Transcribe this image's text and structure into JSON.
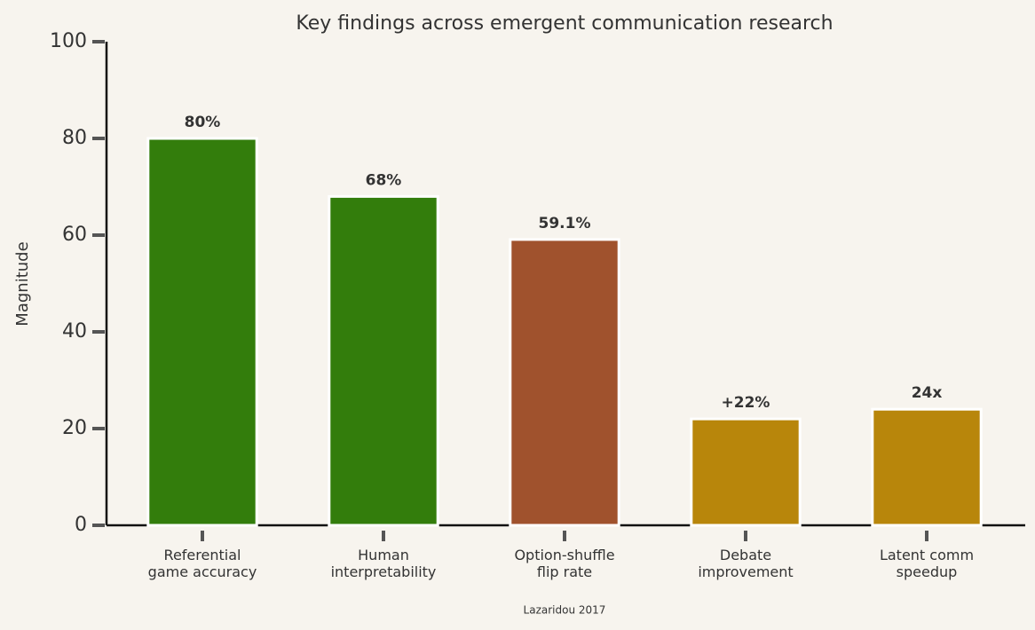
{
  "chart_data": {
    "type": "bar",
    "title": "Key findings across emergent communication research",
    "y_label": "Magnitude",
    "categories": [
      "Referential\ngame accuracy",
      "Human\ninterpretability",
      "Option-shuffle\nflip rate",
      "Debate\nimprovement",
      "Latent comm\nspeedup"
    ],
    "values": [
      80,
      68,
      59.1,
      22,
      24
    ],
    "value_labels": [
      "80%",
      "68%",
      "59.1%",
      "+22%",
      "24x"
    ],
    "colors": [
      "#337d0c",
      "#337d0c",
      "#a0522d",
      "#b8860b",
      "#b8860b"
    ],
    "ylim": [
      0,
      100
    ],
    "yticks": [
      0,
      20,
      40,
      60,
      80,
      100
    ],
    "grid": false,
    "footnote": "Lazaridou 2017"
  }
}
